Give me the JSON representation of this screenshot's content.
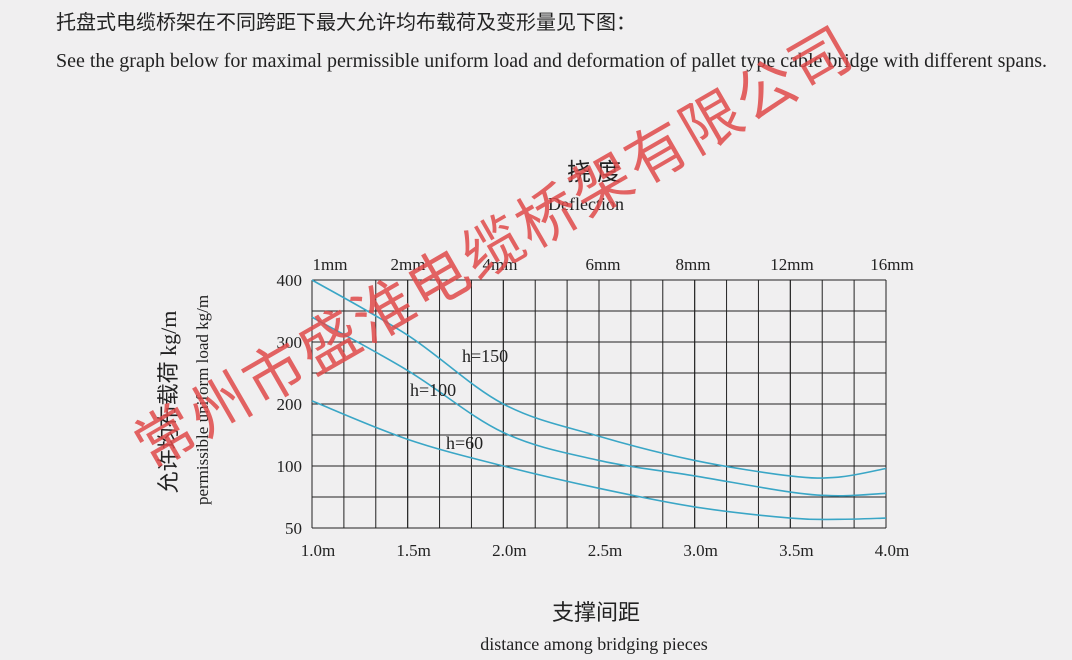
{
  "intro_zh": "托盘式电缆桥架在不同跨距下最大允许均布载荷及变形量见下图：",
  "intro_en": "See the graph below for maximal permissible uniform load and deformation of pallet type cable bridge with different spans.",
  "watermark": "常州市盛淮电缆桥架有限公司",
  "chart_data": {
    "type": "line",
    "title": "挠 度",
    "subtitle": "Deflection",
    "top_labels": [
      "1mm",
      "2mm",
      "4mm",
      "6mm",
      "8mm",
      "12mm",
      "16mm"
    ],
    "y_label_zh": "允许均布载荷  kg/m",
    "y_label_en": "permissible uniform load kg/m",
    "x_label_zh": "支撑间距",
    "x_label_en": "distance among bridging pieces",
    "x": [
      1.0,
      1.5,
      2.0,
      2.5,
      3.0,
      3.5,
      3.75,
      4.0
    ],
    "xlim": [
      1,
      4
    ],
    "xticks": [
      {
        "value": 1,
        "label": "1.0m"
      },
      {
        "value": 1.5,
        "label": "1.5m"
      },
      {
        "value": 2,
        "label": "2.0m"
      },
      {
        "value": 2.5,
        "label": "2.5m"
      },
      {
        "value": 3,
        "label": "3.0m"
      },
      {
        "value": 3.5,
        "label": "3.5m"
      },
      {
        "value": 4,
        "label": "4.0m"
      }
    ],
    "ylim": [
      50,
      400
    ],
    "yticks": [
      50,
      100,
      200,
      300,
      400
    ],
    "grid": true,
    "series": [
      {
        "name": "h=150",
        "color": "#3aa6c6",
        "values": [
          400,
          311,
          200,
          148,
          109,
          92,
          91,
          98
        ]
      },
      {
        "name": "h=100",
        "color": "#3aa6c6",
        "values": [
          340,
          254,
          154,
          109,
          92,
          79,
          76,
          78
        ]
      },
      {
        "name": "h=60",
        "color": "#3aa6c6",
        "values": [
          205,
          143,
          100,
          82,
          67,
          58,
          57,
          58
        ]
      }
    ]
  }
}
